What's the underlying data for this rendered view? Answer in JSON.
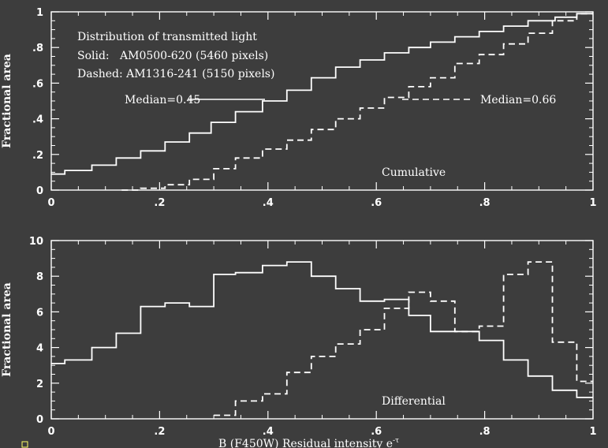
{
  "figure": {
    "background": "#3d3d3d",
    "foreground": "#ffffff",
    "xlabel": "B (F450W) Residual intensity e",
    "xlabel_sup": "-τ"
  },
  "chart_data": [
    {
      "type": "line",
      "panel": "top",
      "ylabel": "Fractional area",
      "xlim": [
        0,
        1
      ],
      "ylim": [
        0,
        1
      ],
      "x_ticks": [
        "0",
        ".2",
        ".4",
        ".6",
        ".8",
        "1"
      ],
      "y_ticks": [
        "0",
        ".2",
        ".4",
        ".6",
        ".8",
        "1"
      ],
      "annotations": {
        "title": "Distribution of transmitted light",
        "solid": "Solid:   AM0500-620 (5460 pixels)",
        "dashed": "Dashed: AM1316-241 (5150 pixels)",
        "median_solid": "Median=0.45",
        "median_dashed": "Median=0.66",
        "panel_label": "Cumulative"
      },
      "series": [
        {
          "style": "solid",
          "name": "AM0500-620 (5460 pixels)",
          "x": [
            0,
            0.025,
            0.025,
            0.075,
            0.075,
            0.12,
            0.12,
            0.165,
            0.165,
            0.21,
            0.21,
            0.255,
            0.255,
            0.295,
            0.295,
            0.34,
            0.34,
            0.39,
            0.39,
            0.435,
            0.435,
            0.48,
            0.48,
            0.525,
            0.525,
            0.57,
            0.57,
            0.615,
            0.615,
            0.66,
            0.66,
            0.7,
            0.7,
            0.745,
            0.745,
            0.79,
            0.79,
            0.835,
            0.835,
            0.88,
            0.88,
            0.93,
            0.93,
            0.97,
            0.97,
            1
          ],
          "y": [
            0.09,
            0.09,
            0.11,
            0.11,
            0.14,
            0.14,
            0.18,
            0.18,
            0.22,
            0.22,
            0.27,
            0.27,
            0.32,
            0.32,
            0.38,
            0.38,
            0.44,
            0.44,
            0.5,
            0.5,
            0.56,
            0.56,
            0.63,
            0.63,
            0.69,
            0.69,
            0.73,
            0.73,
            0.77,
            0.77,
            0.8,
            0.8,
            0.83,
            0.83,
            0.86,
            0.86,
            0.89,
            0.89,
            0.92,
            0.92,
            0.95,
            0.95,
            0.97,
            0.97,
            0.99,
            0.99
          ]
        },
        {
          "style": "dashed",
          "name": "AM1316-241 (5150 pixels)",
          "x": [
            0.13,
            0.165,
            0.165,
            0.21,
            0.21,
            0.255,
            0.255,
            0.3,
            0.3,
            0.34,
            0.34,
            0.39,
            0.39,
            0.435,
            0.435,
            0.48,
            0.48,
            0.525,
            0.525,
            0.57,
            0.57,
            0.615,
            0.615,
            0.66,
            0.66,
            0.7,
            0.7,
            0.745,
            0.745,
            0.79,
            0.79,
            0.835,
            0.835,
            0.88,
            0.88,
            0.925,
            0.925,
            0.97,
            0.97,
            1
          ],
          "y": [
            0,
            0,
            0.01,
            0.01,
            0.03,
            0.03,
            0.06,
            0.06,
            0.12,
            0.12,
            0.18,
            0.18,
            0.23,
            0.23,
            0.28,
            0.28,
            0.34,
            0.34,
            0.4,
            0.4,
            0.46,
            0.46,
            0.52,
            0.52,
            0.58,
            0.58,
            0.63,
            0.63,
            0.71,
            0.71,
            0.76,
            0.76,
            0.82,
            0.82,
            0.88,
            0.88,
            0.95,
            0.95,
            0.99,
            0.99
          ]
        }
      ]
    },
    {
      "type": "line",
      "panel": "bottom",
      "ylabel": "Fractional area",
      "xlim": [
        0,
        1
      ],
      "ylim": [
        0,
        10
      ],
      "x_ticks": [
        "0",
        ".2",
        ".4",
        ".6",
        ".8",
        "1"
      ],
      "y_ticks": [
        "0",
        "2",
        "4",
        "6",
        "8",
        "10"
      ],
      "annotations": {
        "panel_label": "Differential"
      },
      "series": [
        {
          "style": "solid",
          "name": "AM0500-620 (5460 pixels)",
          "x": [
            0,
            0.025,
            0.025,
            0.075,
            0.075,
            0.12,
            0.12,
            0.165,
            0.165,
            0.21,
            0.21,
            0.255,
            0.255,
            0.3,
            0.3,
            0.34,
            0.34,
            0.39,
            0.39,
            0.435,
            0.435,
            0.48,
            0.48,
            0.525,
            0.525,
            0.57,
            0.57,
            0.615,
            0.615,
            0.66,
            0.66,
            0.7,
            0.7,
            0.745,
            0.745,
            0.79,
            0.79,
            0.835,
            0.835,
            0.88,
            0.88,
            0.925,
            0.925,
            0.97,
            0.97,
            1
          ],
          "y": [
            3.1,
            3.1,
            3.3,
            3.3,
            4.0,
            4.0,
            4.8,
            4.8,
            6.3,
            6.3,
            6.5,
            6.5,
            6.3,
            6.3,
            8.1,
            8.1,
            8.2,
            8.2,
            8.6,
            8.6,
            8.8,
            8.8,
            8.0,
            8.0,
            7.3,
            7.3,
            6.6,
            6.6,
            6.7,
            6.7,
            5.8,
            5.8,
            4.9,
            4.9,
            4.9,
            4.9,
            4.4,
            4.4,
            3.3,
            3.3,
            2.4,
            2.4,
            1.6,
            1.6,
            1.2,
            1.2
          ]
        },
        {
          "style": "dashed",
          "name": "AM1316-241 (5150 pixels)",
          "x": [
            0.3,
            0.34,
            0.34,
            0.39,
            0.39,
            0.435,
            0.435,
            0.48,
            0.48,
            0.525,
            0.525,
            0.57,
            0.57,
            0.615,
            0.615,
            0.66,
            0.66,
            0.7,
            0.7,
            0.745,
            0.745,
            0.79,
            0.79,
            0.835,
            0.835,
            0.88,
            0.88,
            0.925,
            0.925,
            0.97,
            0.97,
            1
          ],
          "y": [
            0.2,
            0.2,
            1.0,
            1.0,
            1.4,
            1.4,
            2.6,
            2.6,
            3.5,
            3.5,
            4.2,
            4.2,
            5.0,
            5.0,
            6.2,
            6.2,
            7.1,
            7.1,
            6.6,
            6.6,
            4.9,
            4.9,
            5.2,
            5.2,
            8.1,
            8.1,
            8.8,
            8.8,
            4.3,
            4.3,
            2.1,
            2.1
          ]
        }
      ]
    }
  ]
}
